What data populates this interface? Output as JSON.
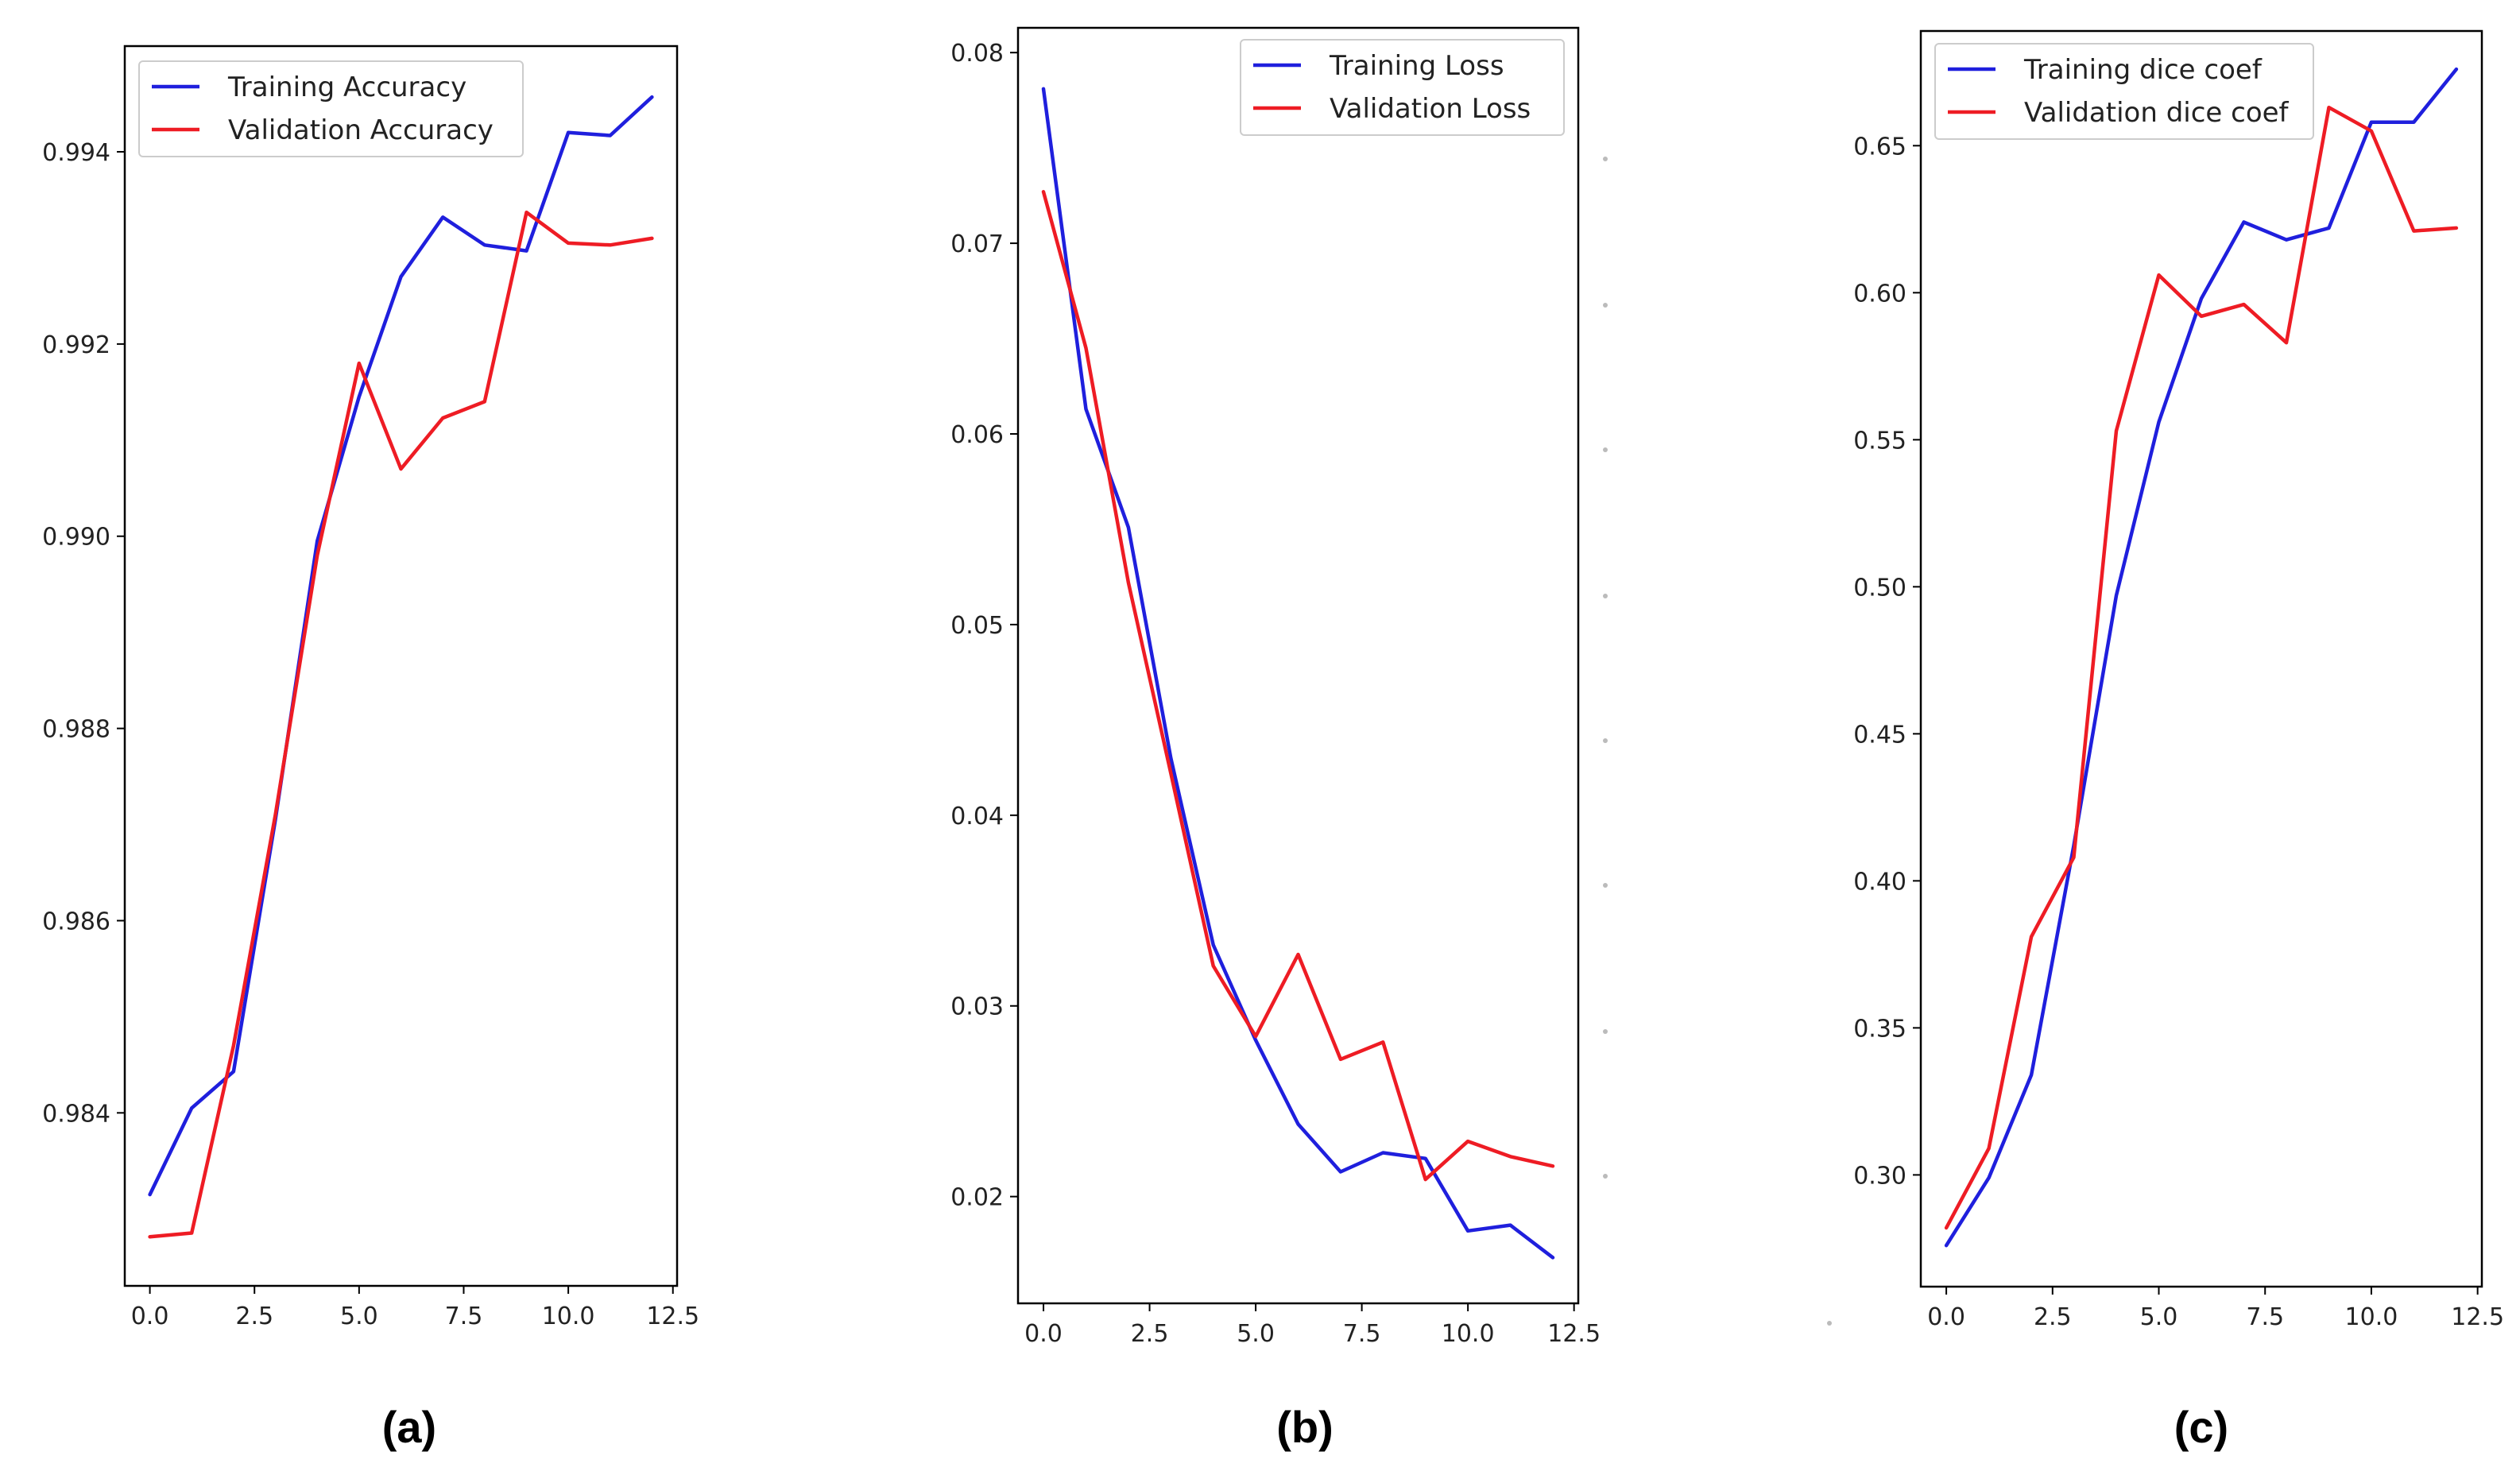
{
  "figure": {
    "captions": [
      "(a)",
      "(b)",
      "(c)"
    ]
  },
  "colors": {
    "training": "#1f1fdd",
    "validation": "#ee1c24"
  },
  "chart_data": [
    {
      "type": "line",
      "title": "",
      "xlabel": "",
      "ylabel": "",
      "xlim": [
        -0.6,
        12.6
      ],
      "ylim": [
        0.9822,
        0.9951
      ],
      "x_ticks": [
        0.0,
        2.5,
        5.0,
        7.5,
        10.0,
        12.5
      ],
      "x_tick_labels": [
        "0.0",
        "2.5",
        "5.0",
        "7.5",
        "10.0",
        "12.5"
      ],
      "y_ticks": [
        0.984,
        0.986,
        0.988,
        0.99,
        0.992,
        0.994
      ],
      "y_tick_labels": [
        "0.984",
        "0.986",
        "0.988",
        "0.990",
        "0.992",
        "0.994"
      ],
      "legend_position": "top-left",
      "x": [
        0,
        1,
        2,
        3,
        4,
        5,
        6,
        7,
        8,
        9,
        10,
        11,
        12
      ],
      "series": [
        {
          "name": "Training Accuracy",
          "color": "#1f1fdd",
          "values": [
            0.98315,
            0.98405,
            0.98443,
            0.98705,
            0.98995,
            0.99145,
            0.9927,
            0.99332,
            0.99303,
            0.99297,
            0.9942,
            0.99417,
            0.99457
          ]
        },
        {
          "name": "Validation Accuracy",
          "color": "#ee1c24",
          "values": [
            0.98271,
            0.98275,
            0.9847,
            0.9871,
            0.9898,
            0.9918,
            0.9907,
            0.99123,
            0.9914,
            0.99337,
            0.99305,
            0.99303,
            0.9931
          ]
        }
      ]
    },
    {
      "type": "line",
      "title": "",
      "xlabel": "",
      "ylabel": "",
      "xlim": [
        -0.6,
        12.6
      ],
      "ylim": [
        0.0144,
        0.0813
      ],
      "x_ticks": [
        0.0,
        2.5,
        5.0,
        7.5,
        10.0,
        12.5
      ],
      "x_tick_labels": [
        "0.0",
        "2.5",
        "5.0",
        "7.5",
        "10.0",
        "12.5"
      ],
      "y_ticks": [
        0.02,
        0.03,
        0.04,
        0.05,
        0.06,
        0.07,
        0.08
      ],
      "y_tick_labels": [
        "0.02",
        "0.03",
        "0.04",
        "0.05",
        "0.06",
        "0.07",
        "0.08"
      ],
      "legend_position": "top-right",
      "x": [
        0,
        1,
        2,
        3,
        4,
        5,
        6,
        7,
        8,
        9,
        10,
        11,
        12
      ],
      "series": [
        {
          "name": "Training Loss",
          "color": "#1f1fdd",
          "values": [
            0.0781,
            0.0613,
            0.0551,
            0.043,
            0.0332,
            0.0282,
            0.0238,
            0.0213,
            0.0223,
            0.022,
            0.0182,
            0.0185,
            0.0168
          ]
        },
        {
          "name": "Validation Loss",
          "color": "#ee1c24",
          "values": [
            0.0727,
            0.0645,
            0.0522,
            0.0422,
            0.0321,
            0.0284,
            0.0327,
            0.0272,
            0.0281,
            0.0209,
            0.0229,
            0.0221,
            0.0216
          ]
        }
      ]
    },
    {
      "type": "line",
      "title": "",
      "xlabel": "",
      "ylabel": "",
      "xlim": [
        -0.6,
        12.6
      ],
      "ylim": [
        0.262,
        0.689
      ],
      "x_ticks": [
        0.0,
        2.5,
        5.0,
        7.5,
        10.0,
        12.5
      ],
      "x_tick_labels": [
        "0.0",
        "2.5",
        "5.0",
        "7.5",
        "10.0",
        "12.5"
      ],
      "y_ticks": [
        0.3,
        0.35,
        0.4,
        0.45,
        0.5,
        0.55,
        0.6,
        0.65
      ],
      "y_tick_labels": [
        "0.30",
        "0.35",
        "0.40",
        "0.45",
        "0.50",
        "0.55",
        "0.60",
        "0.65"
      ],
      "legend_position": "top-left",
      "x": [
        0,
        1,
        2,
        3,
        4,
        5,
        6,
        7,
        8,
        9,
        10,
        11,
        12
      ],
      "series": [
        {
          "name": "Training dice coef",
          "color": "#1f1fdd",
          "values": [
            0.276,
            0.299,
            0.334,
            0.412,
            0.497,
            0.556,
            0.598,
            0.624,
            0.618,
            0.622,
            0.658,
            0.658,
            0.676
          ]
        },
        {
          "name": "Validation dice coef",
          "color": "#ee1c24",
          "values": [
            0.282,
            0.309,
            0.381,
            0.408,
            0.553,
            0.606,
            0.592,
            0.596,
            0.583,
            0.663,
            0.655,
            0.621,
            0.622
          ]
        }
      ]
    }
  ]
}
